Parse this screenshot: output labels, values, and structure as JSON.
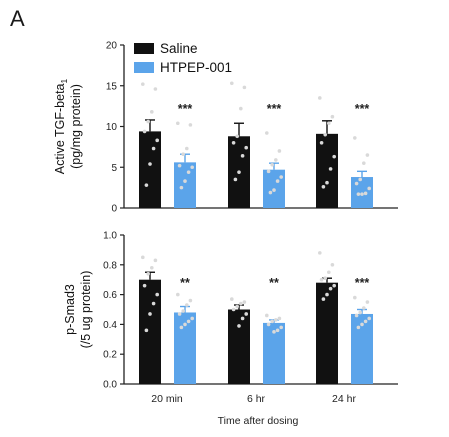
{
  "panel_label": "A",
  "colors": {
    "saline": "#111111",
    "htpep": "#5ba4ea",
    "axis": "#222222",
    "dots": "#d9d9d9"
  },
  "legend": {
    "items": [
      "Saline",
      "HTPEP-001"
    ]
  },
  "xaxis": {
    "label": "Time after dosing",
    "categories": [
      "20 min",
      "6 hr",
      "24 hr"
    ]
  },
  "chart_data": [
    {
      "type": "bar",
      "ylabel_line1": "Active TGF-beta",
      "ylabel_sub": "1",
      "ylabel_line2": "(pg/mg protein)",
      "ylim": [
        0,
        20
      ],
      "yticks": [
        "0",
        "5",
        "10",
        "15",
        "20"
      ],
      "categories": [
        "20 min",
        "6 hr",
        "24 hr"
      ],
      "series": [
        {
          "name": "Saline",
          "values": [
            9.4,
            8.8,
            9.1
          ],
          "errors": [
            1.4,
            1.6,
            1.6
          ],
          "points": [
            [
              15.2,
              14.6,
              11.8,
              10.6,
              9.4,
              8.3,
              7.3,
              5.4,
              2.8
            ],
            [
              15.3,
              14.8,
              12.2,
              8.8,
              8.0,
              7.4,
              6.4,
              4.4,
              3.5
            ],
            [
              13.5,
              11.2,
              10.4,
              9.0,
              8.0,
              6.3,
              4.8,
              3.1,
              2.6
            ]
          ]
        },
        {
          "name": "HTPEP-001",
          "values": [
            5.6,
            4.7,
            3.8
          ],
          "errors": [
            1.0,
            0.8,
            0.7
          ],
          "points": [
            [
              10.4,
              10.2,
              7.3,
              6.6,
              5.2,
              5.0,
              4.4,
              3.3,
              2.5
            ],
            [
              9.2,
              7.0,
              5.9,
              5.3,
              4.5,
              3.8,
              3.3,
              2.2,
              1.9
            ],
            [
              8.6,
              6.5,
              5.5,
              3.5,
              3.0,
              2.4,
              1.8,
              1.7,
              1.7
            ]
          ]
        }
      ],
      "significance": [
        "***",
        "***",
        "***"
      ]
    },
    {
      "type": "bar",
      "ylabel_line1": "p-Smad3",
      "ylabel_line2": "(/5 ug protein)",
      "ylim": [
        0,
        1.0
      ],
      "yticks": [
        "0.0",
        "0.2",
        "0.4",
        "0.6",
        "0.8",
        "1.0"
      ],
      "categories": [
        "20 min",
        "6 hr",
        "24 hr"
      ],
      "series": [
        {
          "name": "Saline",
          "values": [
            0.7,
            0.5,
            0.68
          ],
          "errors": [
            0.05,
            0.03,
            0.03
          ],
          "points": [
            [
              0.85,
              0.83,
              0.78,
              0.74,
              0.66,
              0.6,
              0.54,
              0.47,
              0.36
            ],
            [
              0.57,
              0.55,
              0.54,
              0.52,
              0.5,
              0.47,
              0.44,
              0.39
            ],
            [
              0.88,
              0.8,
              0.75,
              0.71,
              0.7,
              0.66,
              0.64,
              0.6,
              0.57
            ]
          ]
        },
        {
          "name": "HTPEP-001",
          "values": [
            0.48,
            0.41,
            0.47
          ],
          "errors": [
            0.04,
            0.02,
            0.03
          ],
          "points": [
            [
              0.6,
              0.56,
              0.53,
              0.49,
              0.47,
              0.44,
              0.42,
              0.4,
              0.38
            ],
            [
              0.46,
              0.44,
              0.43,
              0.42,
              0.4,
              0.38,
              0.36,
              0.35
            ],
            [
              0.58,
              0.55,
              0.51,
              0.48,
              0.46,
              0.44,
              0.42,
              0.4,
              0.38
            ]
          ]
        }
      ],
      "significance": [
        "**",
        "**",
        "***"
      ]
    }
  ]
}
